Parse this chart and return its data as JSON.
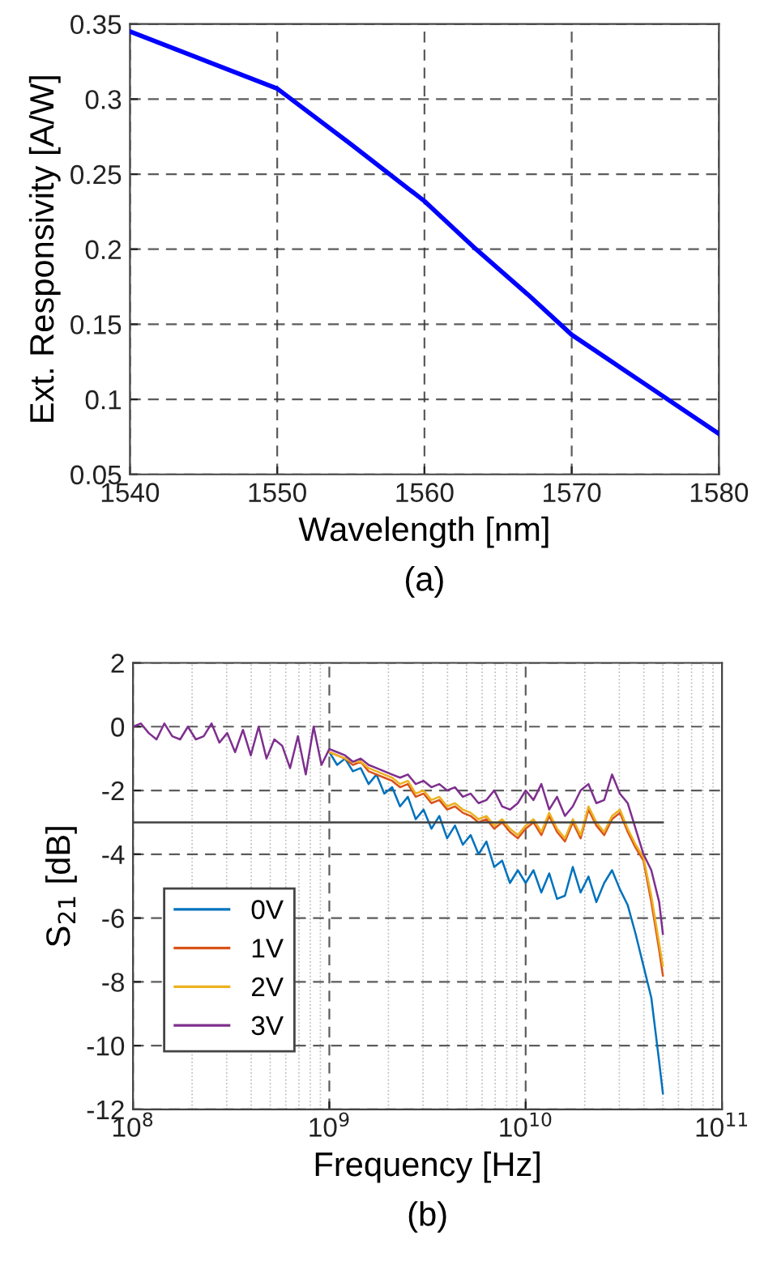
{
  "chart_data": [
    {
      "type": "line",
      "xlabel": "Wavelength [nm]",
      "ylabel": "Ext. Responsivity [A/W]",
      "annotations": [
        "(a)"
      ],
      "x": [
        1540,
        1545,
        1550,
        1555,
        1560,
        1563.5,
        1567,
        1570,
        1575,
        1580
      ],
      "series": [
        {
          "color": "#0000ff",
          "values": [
            0.345,
            0.326,
            0.307,
            0.27,
            0.232,
            0.2,
            0.17,
            0.143,
            0.11,
            0.077
          ]
        }
      ],
      "xlim": [
        1540,
        1580
      ],
      "xticks": [
        1540,
        1550,
        1560,
        1570,
        1580
      ],
      "ylim": [
        0.05,
        0.35
      ],
      "yticks": [
        0.05,
        0.1,
        0.15,
        0.2,
        0.25,
        0.3,
        0.35
      ],
      "grid": true
    },
    {
      "type": "line",
      "xlabel": "Frequency [Hz]",
      "ylabel": "S$_{21}$ [dB]",
      "annotations": [
        "(b)"
      ],
      "log": "x",
      "legend": "lower left",
      "x": [
        100000000.0,
        109600000.0,
        120200000.0,
        131800000.0,
        144500000.0,
        158500000.0,
        173800000.0,
        190500000.0,
        208900000.0,
        229100000.0,
        251200000.0,
        275400000.0,
        302000000.0,
        331100000.0,
        363100000.0,
        398100000.0,
        436500000.0,
        478600000.0,
        524800000.0,
        575400000.0,
        631000000.0,
        691800000.0,
        758600000.0,
        831800000.0,
        912000000.0,
        1000000000.0,
        1096000000.0,
        1202000000.0,
        1318000000.0,
        1445000000.0,
        1585000000.0,
        1738000000.0,
        1905000000.0,
        2089000000.0,
        2291000000.0,
        2512000000.0,
        2754000000.0,
        3020000000.0,
        3311000000.0,
        3631000000.0,
        3981000000.0,
        4365000000.0,
        4786000000.0,
        5248000000.0,
        5754000000.0,
        6310000000.0,
        6918000000.0,
        7586000000.0,
        8318000000.0,
        9120000000.0,
        10000000000.0,
        10960000000.0,
        12020000000.0,
        13180000000.0,
        14450000000.0,
        15850000000.0,
        17380000000.0,
        19050000000.0,
        20890000000.0,
        22910000000.0,
        25120000000.0,
        27540000000.0,
        30200000000.0,
        33110000000.0,
        36310000000.0,
        39810000000.0,
        43650000000.0,
        47860000000.0,
        50000000000.0
      ],
      "series": [
        {
          "name": "0V",
          "color": "#0072bd",
          "values": [
            null,
            null,
            null,
            null,
            null,
            null,
            null,
            null,
            null,
            null,
            null,
            null,
            null,
            null,
            null,
            null,
            null,
            null,
            null,
            null,
            null,
            null,
            null,
            null,
            null,
            -0.8,
            -1.2,
            -1.0,
            -1.4,
            -1.3,
            -1.8,
            -1.5,
            -2.1,
            -1.9,
            -2.5,
            -2.2,
            -2.9,
            -2.6,
            -3.2,
            -2.8,
            -3.5,
            -3.1,
            -3.7,
            -3.4,
            -4.0,
            -3.6,
            -4.4,
            -4.2,
            -4.9,
            -4.5,
            -4.9,
            -4.5,
            -5.2,
            -4.6,
            -5.4,
            -5.3,
            -4.4,
            -5.2,
            -4.7,
            -5.5,
            -4.9,
            -4.5,
            -5.1,
            -5.6,
            -6.5,
            -7.5,
            -8.5,
            -10.5,
            -11.5
          ]
        },
        {
          "name": "1V",
          "color": "#d95319",
          "values": [
            null,
            null,
            null,
            null,
            null,
            null,
            null,
            null,
            null,
            null,
            null,
            null,
            null,
            null,
            null,
            null,
            null,
            null,
            null,
            null,
            null,
            null,
            null,
            null,
            null,
            -0.8,
            -0.9,
            -1.0,
            -1.2,
            -1.1,
            -1.4,
            -1.5,
            -1.6,
            -1.7,
            -1.9,
            -1.8,
            -2.2,
            -2.1,
            -2.4,
            -2.3,
            -2.6,
            -2.5,
            -2.7,
            -2.8,
            -3.0,
            -2.9,
            -3.2,
            -3.0,
            -3.3,
            -3.5,
            -3.2,
            -3.0,
            -3.4,
            -2.8,
            -3.3,
            -3.6,
            -3.0,
            -3.5,
            -2.6,
            -3.1,
            -3.4,
            -2.9,
            -2.7,
            -3.3,
            -3.8,
            -4.2,
            -5.5,
            -7.0,
            -7.8
          ]
        },
        {
          "name": "2V",
          "color": "#edb120",
          "values": [
            null,
            null,
            null,
            null,
            null,
            null,
            null,
            null,
            null,
            null,
            null,
            null,
            null,
            null,
            null,
            null,
            null,
            null,
            null,
            null,
            null,
            null,
            null,
            null,
            null,
            -0.8,
            -0.9,
            -1.0,
            -1.1,
            -1.1,
            -1.3,
            -1.4,
            -1.5,
            -1.6,
            -1.8,
            -1.7,
            -2.1,
            -2.0,
            -2.3,
            -2.2,
            -2.5,
            -2.4,
            -2.6,
            -2.7,
            -2.9,
            -2.8,
            -3.1,
            -2.9,
            -3.2,
            -3.4,
            -3.1,
            -2.9,
            -3.3,
            -2.7,
            -3.2,
            -3.5,
            -2.9,
            -3.4,
            -2.5,
            -3.0,
            -3.3,
            -2.8,
            -2.6,
            -3.2,
            -3.7,
            -4.1,
            -5.3,
            -6.8,
            -7.5
          ]
        },
        {
          "name": "3V",
          "color": "#7e2f8e",
          "values": [
            0,
            0.1,
            -0.2,
            -0.4,
            0.1,
            -0.3,
            -0.4,
            0,
            -0.4,
            -0.3,
            0.1,
            -0.5,
            -0.2,
            -0.8,
            -0.1,
            -0.9,
            0,
            -1.0,
            -0.4,
            -0.6,
            -1.3,
            -0.3,
            -1.5,
            0,
            -1.2,
            -0.7,
            -0.8,
            -0.9,
            -1.1,
            -1.0,
            -1.2,
            -1.3,
            -1.4,
            -1.5,
            -1.6,
            -1.5,
            -1.8,
            -1.7,
            -1.9,
            -1.8,
            -2.0,
            -1.9,
            -2.2,
            -2.1,
            -2.4,
            -2.3,
            -2.0,
            -2.5,
            -2.6,
            -2.4,
            -2.0,
            -2.3,
            -1.8,
            -2.6,
            -2.2,
            -2.8,
            -2.5,
            -2.0,
            -1.8,
            -2.4,
            -2.3,
            -1.5,
            -2.1,
            -2.4,
            -3.2,
            -4.0,
            -4.5,
            -5.5,
            -6.5
          ]
        },
        {
          "color": "#404040",
          "x": [
            100000000.0,
            50000000000.0
          ],
          "values": [
            -3,
            -3
          ]
        }
      ],
      "xlim": [
        100000000.0,
        100000000000.0
      ],
      "xticks": [
        {
          "value": 100000000.0,
          "label": "10$^{8}$"
        },
        {
          "value": 1000000000.0,
          "label": "10$^{9}$"
        },
        {
          "value": 10000000000.0,
          "label": "10$^{10}$"
        },
        {
          "value": 100000000000.0,
          "label": "10$^{11}$"
        }
      ],
      "ylim": [
        -12,
        2
      ],
      "yticks": [
        -12,
        -10,
        -8,
        -6,
        -4,
        -2,
        0,
        2
      ],
      "grid": true
    }
  ]
}
